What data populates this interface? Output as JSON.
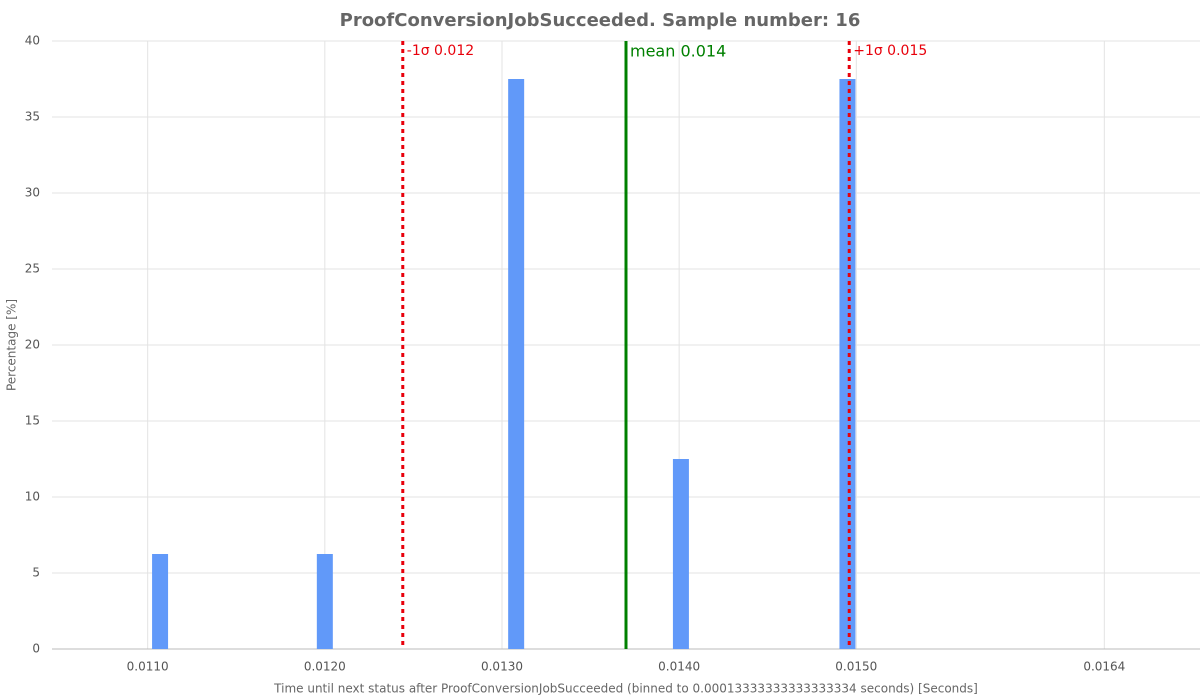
{
  "chart_data": {
    "type": "bar",
    "title": "ProofConversionJobSucceeded. Sample number: 16",
    "x_label": "Time until next status after ProofConversionJobSucceeded (binned to 0.00013333333333333334 seconds) [Seconds]",
    "y_label": "Percentage [%]",
    "x": [
      0.01107,
      0.012,
      0.01308,
      0.01401,
      0.01495
    ],
    "values": [
      6.25,
      6.25,
      37.5,
      12.5,
      37.5
    ],
    "color": "#6199f9",
    "xlim": [
      0.01046,
      0.01694
    ],
    "ylim": [
      0,
      40
    ],
    "xticks": [
      {
        "value": 0.011,
        "label": "0.0110"
      },
      {
        "value": 0.012,
        "label": "0.0120"
      },
      {
        "value": 0.013,
        "label": "0.0130"
      },
      {
        "value": 0.014,
        "label": "0.0140"
      },
      {
        "value": 0.015,
        "label": "0.0150"
      },
      {
        "value": 0.0164,
        "label": "0.0164"
      }
    ],
    "yticks": [
      0,
      5,
      10,
      15,
      20,
      25,
      30,
      35,
      40
    ],
    "grid": true,
    "annotations": [
      {
        "value": 0.01244,
        "label": "-1σ 0.012",
        "color": "#e8000b",
        "style": "dotted"
      },
      {
        "value": 0.0137,
        "label": "mean 0.014",
        "color": "#008000",
        "style": "solid"
      },
      {
        "value": 0.01496,
        "label": "+1σ 0.015",
        "color": "#e8000b",
        "style": "dotted"
      }
    ]
  }
}
